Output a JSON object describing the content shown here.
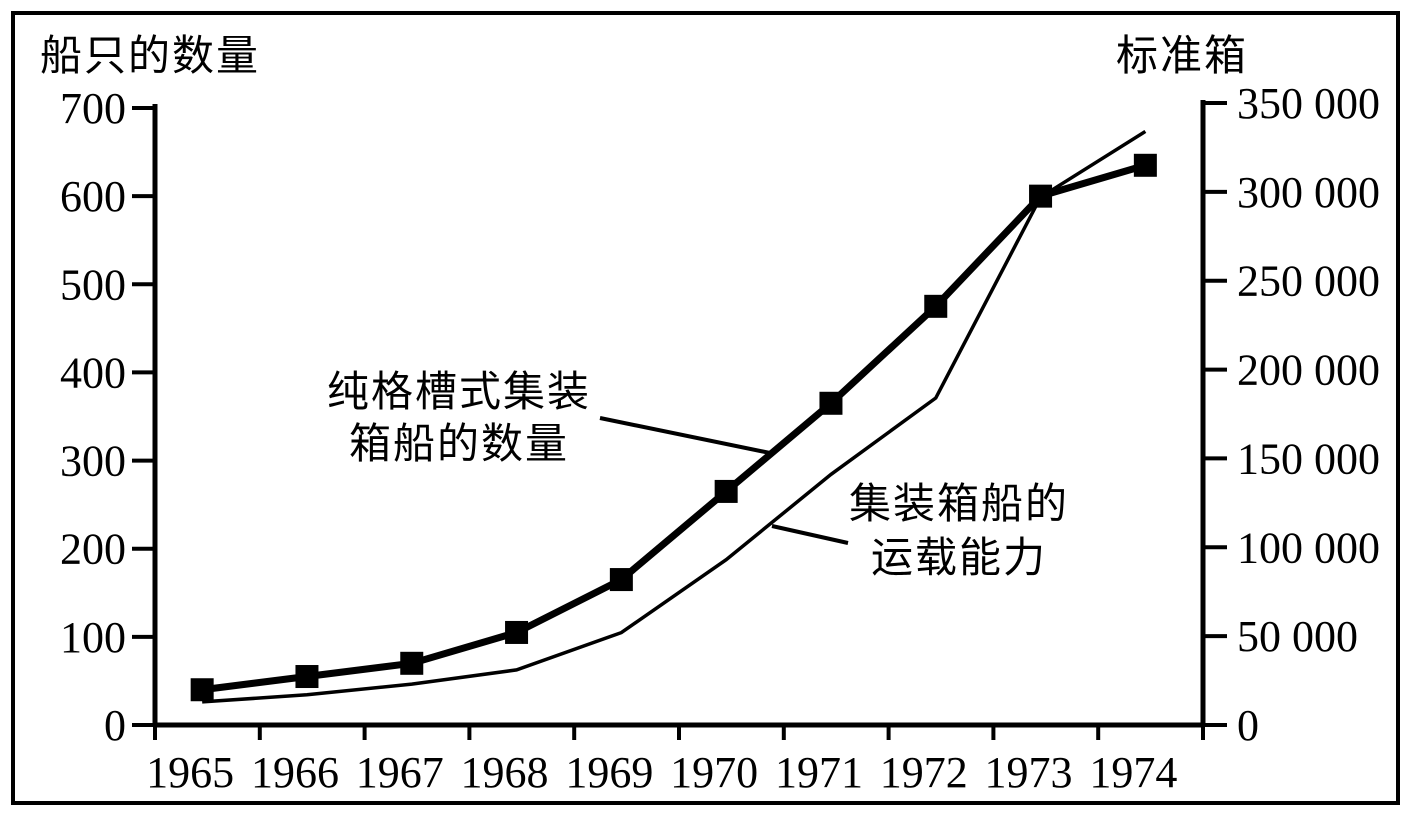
{
  "page": {
    "background_color": "#ffffff",
    "ink_color": "#000000"
  },
  "chart_data": {
    "type": "line",
    "title": "",
    "x": [
      "1965",
      "1966",
      "1967",
      "1968",
      "1969",
      "1970",
      "1971",
      "1972",
      "1973",
      "1974"
    ],
    "left_axis": {
      "title": "船只的数量",
      "range": [
        0,
        700
      ],
      "tick_values": [
        0,
        100,
        200,
        300,
        400,
        500,
        600,
        700
      ],
      "tick_labels": [
        "0",
        "100",
        "200",
        "300",
        "400",
        "500",
        "600",
        "700"
      ]
    },
    "right_axis": {
      "title": "标准箱",
      "range": [
        0,
        350000
      ],
      "tick_values": [
        0,
        50000,
        100000,
        150000,
        200000,
        250000,
        300000,
        350000
      ],
      "tick_labels": [
        "0",
        "50 000",
        "100 000",
        "150 000",
        "200 000",
        "250 000",
        "300 000",
        "350 000"
      ]
    },
    "grid": false,
    "legend_position": "annotations-with-leader-lines",
    "series": [
      {
        "name": "纯格槽式集装箱船的数量",
        "axis": "left",
        "style": "thick-line-square-markers",
        "values": [
          40,
          55,
          70,
          105,
          165,
          265,
          365,
          475,
          600,
          635
        ]
      },
      {
        "name": "集装箱船的运载能力",
        "axis": "right",
        "style": "thin-line",
        "values": [
          13000,
          17000,
          23000,
          31000,
          52000,
          93000,
          141000,
          184000,
          297000,
          334000
        ]
      }
    ],
    "annotations": [
      {
        "lines": [
          "纯格槽式集装",
          "箱船的数量"
        ],
        "points_to": "series-0"
      },
      {
        "lines": [
          "集装箱船的",
          "运载能力"
        ],
        "points_to": "series-1"
      }
    ]
  }
}
